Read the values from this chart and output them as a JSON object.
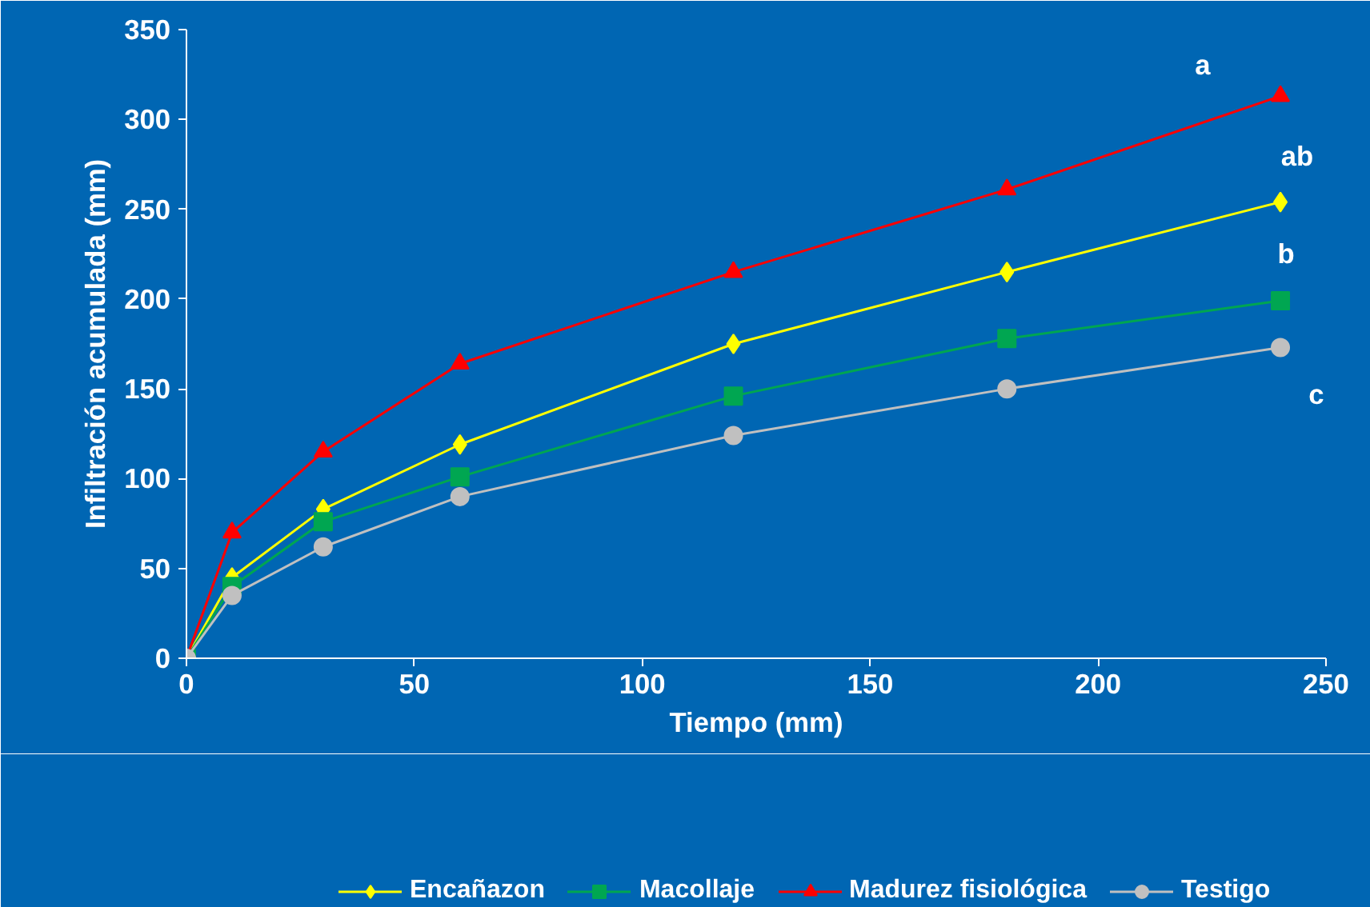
{
  "chart_data": {
    "type": "line",
    "xlabel": "Tiempo (mm)",
    "ylabel": "Infiltración acumulada (mm)",
    "x": [
      0,
      10,
      30,
      60,
      120,
      180,
      240
    ],
    "series": [
      {
        "name": "Encañazon",
        "color": "#ffff00",
        "marker": "diamond",
        "values": [
          0,
          45,
          83,
          119,
          175,
          215,
          254
        ]
      },
      {
        "name": "Macollaje",
        "color": "#00a651",
        "marker": "square",
        "values": [
          0,
          40,
          76,
          101,
          146,
          178,
          199
        ]
      },
      {
        "name": "Madurez fisiológica",
        "color": "#ff0000",
        "marker": "triangle",
        "values": [
          0,
          70,
          115,
          164,
          215,
          261,
          313
        ]
      },
      {
        "name": "Testigo",
        "color": "#c0c0c0",
        "marker": "circle",
        "values": [
          0,
          35,
          62,
          90,
          124,
          150,
          173
        ]
      }
    ],
    "xlim": [
      0,
      250
    ],
    "xticks": [
      0,
      50,
      100,
      150,
      200,
      250
    ],
    "ylim": [
      0,
      350
    ],
    "yticks": [
      0,
      50,
      100,
      150,
      200,
      250,
      300,
      350
    ],
    "grid": false,
    "legend": "bottom",
    "line_style": "solid",
    "annotations": [
      "a",
      "ab",
      "b",
      "c"
    ]
  }
}
